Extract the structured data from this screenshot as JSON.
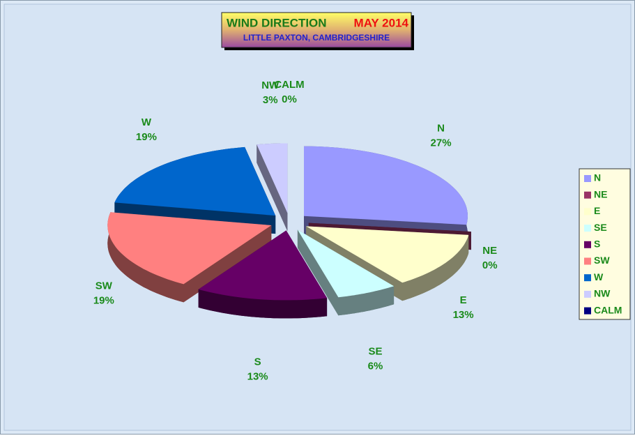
{
  "chart_data": {
    "type": "pie",
    "title": "WIND DIRECTION",
    "title_period": "MAY 2014",
    "subtitle": "LITTLE PAXTON, CAMBRIDGESHIRE",
    "categories": [
      "N",
      "NE",
      "E",
      "SE",
      "S",
      "SW",
      "W",
      "NW",
      "CALM"
    ],
    "values": [
      27,
      0,
      13,
      6,
      13,
      19,
      19,
      3,
      0
    ],
    "value_labels": [
      "27%",
      "0%",
      "13%",
      "6%",
      "13%",
      "19%",
      "19%",
      "3%",
      "0%"
    ],
    "colors": [
      "#9999ff",
      "#993366",
      "#ffffcc",
      "#ccffff",
      "#660066",
      "#ff8080",
      "#0066cc",
      "#ccccff",
      "#000080"
    ],
    "legend": "right"
  }
}
